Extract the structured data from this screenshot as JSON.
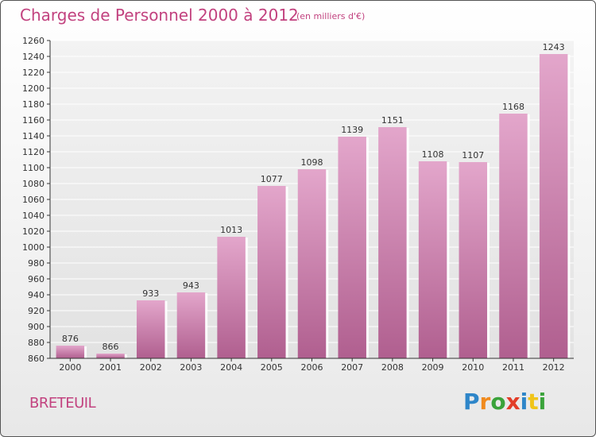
{
  "header": {
    "title": "Charges de Personnel 2000 à 2012",
    "unit": "(en milliers d'€)"
  },
  "footer": {
    "location": "BRETEUIL",
    "brand": "Proxiti"
  },
  "colors": {
    "bar_top": "#e3a6cb",
    "bar_bottom": "#b05f8f",
    "title": "#c2427f",
    "brand_letters": [
      "#2e86c9",
      "#f08a1d",
      "#3aa33a",
      "#e23d28",
      "#2e86c9",
      "#f0c419",
      "#3aa33a"
    ]
  },
  "chart_data": {
    "type": "bar",
    "title": "Charges de Personnel 2000 à 2012",
    "subtitle": "(en milliers d'€)",
    "categories": [
      "2000",
      "2001",
      "2002",
      "2003",
      "2004",
      "2005",
      "2006",
      "2007",
      "2008",
      "2009",
      "2010",
      "2011",
      "2012"
    ],
    "values": [
      876,
      866,
      933,
      943,
      1013,
      1077,
      1098,
      1139,
      1151,
      1108,
      1107,
      1168,
      1243
    ],
    "data_labels": [
      "876",
      "866",
      "933",
      "943",
      "1013",
      "1077",
      "1098",
      "1139",
      "1151",
      "1108",
      "1107",
      "1168",
      "1243"
    ],
    "ylim": [
      860,
      1260
    ],
    "yticks": [
      860,
      880,
      900,
      920,
      940,
      960,
      980,
      1000,
      1020,
      1040,
      1060,
      1080,
      1100,
      1120,
      1140,
      1160,
      1180,
      1200,
      1220,
      1240,
      1260
    ],
    "grid": true,
    "legend": "none"
  }
}
